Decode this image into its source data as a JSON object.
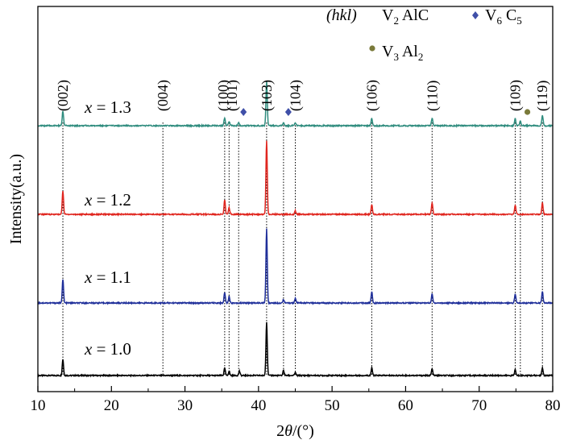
{
  "chart_data": {
    "type": "line",
    "xlabel_parts": [
      "2",
      "θ",
      "/(°)"
    ],
    "ylabel": "Intensity(a.u.)",
    "xlim": [
      10,
      80
    ],
    "x_ticks": [
      "10",
      "20",
      "30",
      "40",
      "50",
      "60",
      "70",
      "80"
    ],
    "grid": false,
    "colors": {
      "x_1_0": "#000000",
      "x_1_1": "#1f2f9a",
      "x_1_2": "#e0261f",
      "x_1_3": "#2f8c7e",
      "v6c5_marker": "#3f4fa8",
      "v3al2_marker": "#7a7a3a"
    },
    "series": [
      {
        "key": "x_1_0",
        "label_var": "x",
        "label_val": " = 1.0",
        "peaks": [
          [
            13.4,
            22
          ],
          [
            35.4,
            10
          ],
          [
            36.0,
            6
          ],
          [
            37.4,
            6
          ],
          [
            41.1,
            72
          ],
          [
            43.4,
            7
          ],
          [
            45.0,
            4
          ],
          [
            55.4,
            10
          ],
          [
            63.6,
            9
          ],
          [
            74.9,
            8
          ],
          [
            78.6,
            10
          ]
        ]
      },
      {
        "key": "x_1_1",
        "label_var": "x",
        "label_val": " = 1.1",
        "peaks": [
          [
            13.4,
            32
          ],
          [
            35.4,
            14
          ],
          [
            36.0,
            9
          ],
          [
            41.1,
            100
          ],
          [
            43.4,
            5
          ],
          [
            45.0,
            6
          ],
          [
            55.4,
            15
          ],
          [
            63.6,
            12
          ],
          [
            74.9,
            12
          ],
          [
            78.6,
            15
          ]
        ]
      },
      {
        "key": "x_1_2",
        "label_var": "x",
        "label_val": " = 1.2",
        "peaks": [
          [
            13.4,
            32
          ],
          [
            35.4,
            19
          ],
          [
            36.0,
            9
          ],
          [
            41.1,
            100
          ],
          [
            45.0,
            5
          ],
          [
            55.4,
            13
          ],
          [
            63.6,
            15
          ],
          [
            74.9,
            12
          ],
          [
            78.6,
            16
          ]
        ]
      },
      {
        "key": "x_1_3",
        "label_var": "x",
        "label_val": " = 1.3",
        "peaks": [
          [
            13.4,
            20
          ],
          [
            35.4,
            11
          ],
          [
            36.0,
            6
          ],
          [
            37.3,
            4
          ],
          [
            41.1,
            60
          ],
          [
            43.4,
            4
          ],
          [
            45.0,
            4
          ],
          [
            55.4,
            10
          ],
          [
            63.6,
            10
          ],
          [
            74.9,
            10
          ],
          [
            75.6,
            6
          ],
          [
            78.6,
            14
          ]
        ]
      }
    ],
    "reference_lines": [
      13.4,
      27.0,
      35.4,
      36.0,
      37.3,
      41.1,
      43.4,
      45.0,
      55.4,
      63.6,
      74.9,
      75.6,
      78.6
    ],
    "hkl_labels": [
      {
        "text": "(002)",
        "x": 13.4
      },
      {
        "text": "(004)",
        "x": 27.0
      },
      {
        "text": "(100)",
        "x": 35.2
      },
      {
        "text": "(101)",
        "x": 36.4
      },
      {
        "text": "(103)",
        "x": 41.1
      },
      {
        "text": "(104)",
        "x": 45.0
      },
      {
        "text": "(106)",
        "x": 55.4
      },
      {
        "text": "(110)",
        "x": 63.6
      },
      {
        "text": "(109)",
        "x": 74.9
      },
      {
        "text": "(119)",
        "x": 78.6
      }
    ],
    "phase_markers": [
      {
        "phase": "V6C5",
        "x": 37.3
      },
      {
        "phase": "V6C5",
        "x": 43.4
      },
      {
        "phase": "V3Al2",
        "x": 75.9
      }
    ],
    "legend": {
      "hkl": "(hkl)",
      "v2alc": {
        "a": "V",
        "b": "2",
        "c": " AlC"
      },
      "v6c5": {
        "a": "V",
        "b": "6",
        "c": " C",
        "d": "5"
      },
      "v3al2": {
        "a": "V",
        "b": "3",
        "c": " Al",
        "d": "2"
      }
    }
  }
}
